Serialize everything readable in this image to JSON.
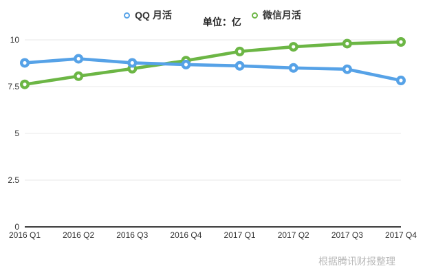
{
  "header": {
    "unit_label": "单位：亿"
  },
  "legend": [
    {
      "label": "QQ 月活",
      "color": "#56a2e7"
    },
    {
      "label": "微信月活",
      "color": "#6cb645"
    }
  ],
  "footer": {
    "source_note": "根据腾讯财报整理"
  },
  "colors": {
    "qq_blue": "#56a2e7",
    "wechat_green": "#6cb645",
    "gridline": "#eaeaea",
    "axis_line": "#3d3d3d",
    "tick_text": "#333333",
    "source_text": "#b8b8b8"
  },
  "chart_data": {
    "type": "line",
    "title": "",
    "unit": "亿",
    "categories": [
      "2016 Q1",
      "2016 Q2",
      "2016 Q3",
      "2016 Q4",
      "2017 Q1",
      "2017 Q2",
      "2017 Q3",
      "2017 Q4"
    ],
    "series": [
      {
        "id": "qq",
        "name": "QQ 月活",
        "color": "#56a2e7",
        "values": [
          8.77,
          8.99,
          8.77,
          8.68,
          8.61,
          8.5,
          8.43,
          7.83
        ]
      },
      {
        "id": "wechat",
        "name": "微信月活",
        "color": "#6cb645",
        "values": [
          7.62,
          8.06,
          8.46,
          8.89,
          9.38,
          9.63,
          9.8,
          9.89
        ]
      }
    ],
    "ylim": [
      0,
      10
    ],
    "yticks": [
      0,
      2.5,
      5,
      7.5,
      10
    ],
    "grid": true,
    "legend_position": "top",
    "source_note": "根据腾讯财报整理"
  }
}
